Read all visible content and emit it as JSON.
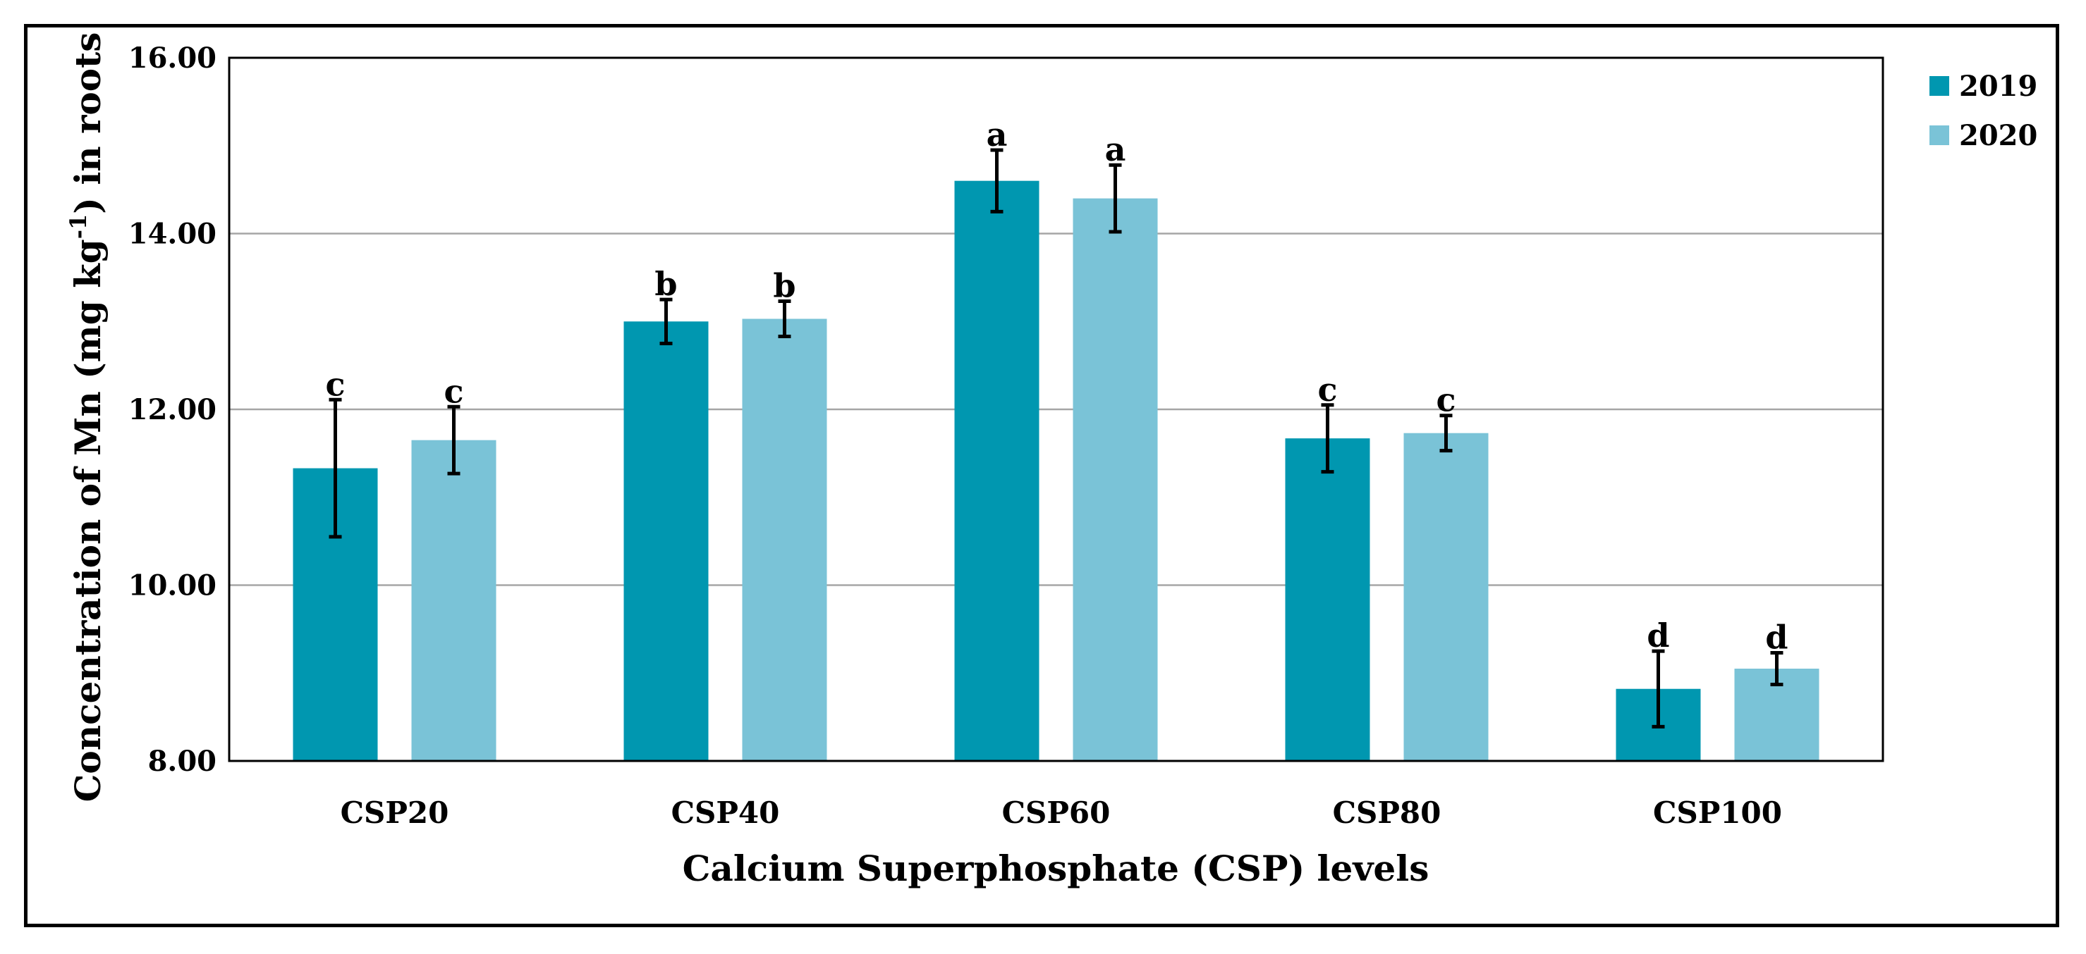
{
  "chart_data": {
    "type": "bar",
    "title": "",
    "xlabel": "Calcium Superphosphate (CSP) levels",
    "ylabel_main": "Concentration of Mn (mg kg",
    "ylabel_sup": "-1",
    "ylabel_end": ") in roots",
    "ylim": [
      8.0,
      16.0
    ],
    "yticks": [
      "8.00",
      "10.00",
      "12.00",
      "14.00",
      "16.00"
    ],
    "ytick_values": [
      8,
      10,
      12,
      14,
      16
    ],
    "grid": true,
    "legend_position": "top-right",
    "categories": [
      "CSP20",
      "CSP40",
      "CSP60",
      "CSP80",
      "CSP100"
    ],
    "series": [
      {
        "name": "2019",
        "color": "#0097b0",
        "values": [
          11.33,
          13.0,
          14.6,
          11.67,
          8.82
        ],
        "errors": [
          0.78,
          0.25,
          0.35,
          0.38,
          0.43
        ],
        "letters": [
          "c",
          "b",
          "a",
          "c",
          "d"
        ]
      },
      {
        "name": "2020",
        "color": "#7ac3d7",
        "values": [
          11.65,
          13.03,
          14.4,
          11.73,
          9.05
        ],
        "errors": [
          0.38,
          0.2,
          0.38,
          0.2,
          0.18
        ],
        "letters": [
          "c",
          "b",
          "a",
          "c",
          "d"
        ]
      }
    ]
  }
}
